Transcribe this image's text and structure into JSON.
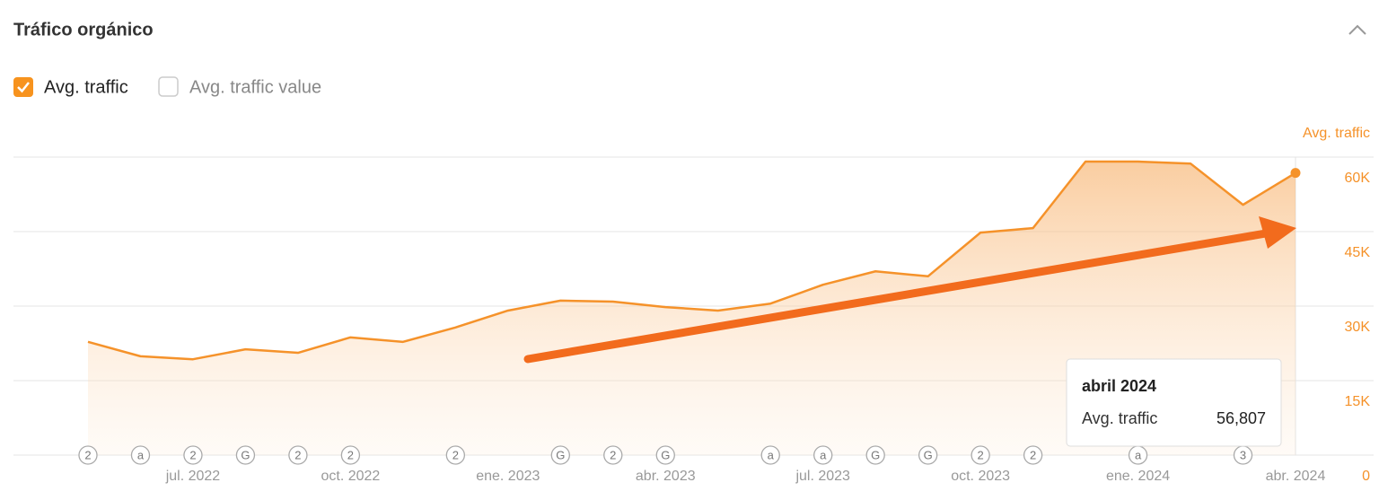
{
  "chart_data": {
    "type": "area",
    "title": "Tráfico orgánico",
    "extra_toggle": "Avg. traffic value",
    "ylabel": "Avg. traffic",
    "categories": [
      null,
      null,
      "jul. 2022",
      null,
      null,
      "oct. 2022",
      null,
      null,
      "ene. 2023",
      null,
      null,
      "abr. 2023",
      null,
      null,
      "jul. 2023",
      null,
      null,
      "oct. 2023",
      null,
      null,
      "ene. 2024",
      null,
      null,
      "abr. 2024"
    ],
    "series": [
      {
        "name": "Avg. traffic",
        "color": "#f5922a",
        "values": [
          22800,
          19900,
          19300,
          21300,
          20600,
          23700,
          22800,
          25700,
          29100,
          31100,
          30900,
          29800,
          29100,
          30500,
          34300,
          37000,
          36000,
          44800,
          45700,
          59100,
          59100,
          58700,
          50400,
          56807
        ],
        "value_labels": [
          null,
          null,
          null,
          null,
          null,
          null,
          null,
          null,
          null,
          null,
          null,
          null,
          null,
          null,
          null,
          null,
          null,
          null,
          null,
          null,
          null,
          null,
          null,
          "56,807"
        ]
      }
    ],
    "events": [
      {
        "index": 0,
        "label": "2"
      },
      {
        "index": 1,
        "label": "a"
      },
      {
        "index": 2,
        "label": "2"
      },
      {
        "index": 3,
        "label": "G"
      },
      {
        "index": 4,
        "label": "2"
      },
      {
        "index": 5,
        "label": "2"
      },
      {
        "index": 7,
        "label": "2"
      },
      {
        "index": 9,
        "label": "G"
      },
      {
        "index": 10,
        "label": "2"
      },
      {
        "index": 11,
        "label": "G"
      },
      {
        "index": 13,
        "label": "a"
      },
      {
        "index": 14,
        "label": "a"
      },
      {
        "index": 15,
        "label": "G"
      },
      {
        "index": 16,
        "label": "G"
      },
      {
        "index": 17,
        "label": "2"
      },
      {
        "index": 18,
        "label": "2"
      },
      {
        "index": 20,
        "label": "a"
      },
      {
        "index": 22,
        "label": "3"
      }
    ],
    "tooltip": {
      "title": "abril 2024",
      "index": 23
    },
    "ylim": [
      0,
      60000
    ],
    "yticks": [
      0,
      {
        "value": 15000,
        "label": "15K"
      },
      {
        "value": 30000,
        "label": "30K"
      },
      {
        "value": 45000,
        "label": "45K"
      },
      {
        "value": 60000,
        "label": "60K"
      }
    ],
    "grid": true
  }
}
